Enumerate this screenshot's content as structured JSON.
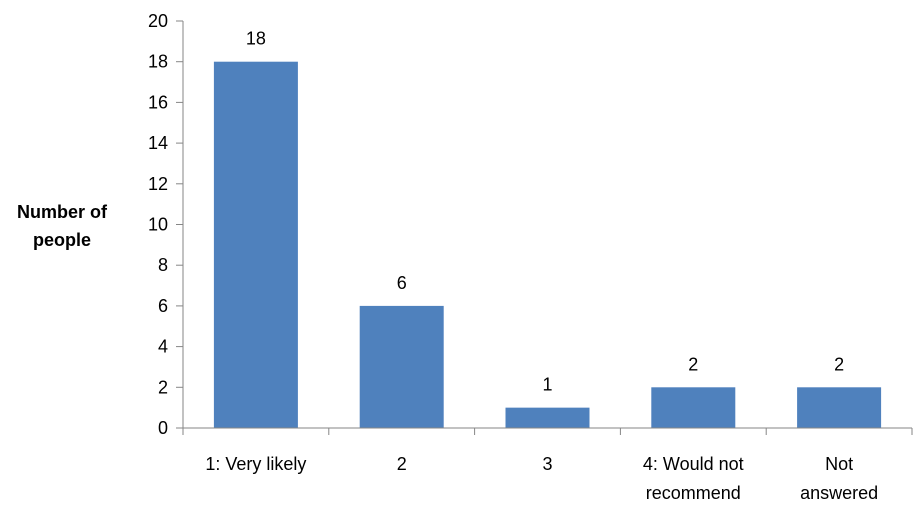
{
  "chart_data": {
    "type": "bar",
    "categories": [
      [
        "1: Very likely"
      ],
      [
        "2"
      ],
      [
        "3"
      ],
      [
        "4: Would not",
        "recommend"
      ],
      [
        "Not",
        "answered"
      ]
    ],
    "values": [
      18,
      6,
      1,
      2,
      2
    ],
    "data_labels": [
      "18",
      "6",
      "1",
      "2",
      "2"
    ],
    "title": "",
    "xlabel": "",
    "ylabel": [
      "Number of",
      "people"
    ],
    "ylim": [
      0,
      20
    ],
    "yticks": [
      0,
      2,
      4,
      6,
      8,
      10,
      12,
      14,
      16,
      18,
      20
    ],
    "grid": false,
    "legend": "none",
    "colors": {
      "bar": "#4f81bd",
      "axis": "#868686",
      "text": "#000000"
    }
  }
}
